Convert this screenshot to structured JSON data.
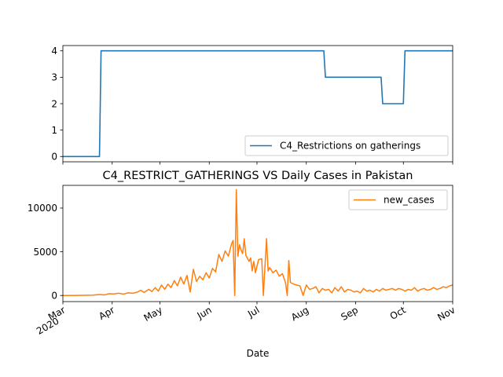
{
  "chart_data": [
    {
      "type": "line",
      "title": "",
      "xlabel": "",
      "ylabel": "",
      "ylim": [
        -0.2,
        4.2
      ],
      "yticks": [
        0,
        1,
        2,
        3,
        4
      ],
      "grid": false,
      "legend_position": "lower-right",
      "series": [
        {
          "name": "C4_Restrictions on gatherings",
          "color": "#1f77b4",
          "step": true,
          "points": [
            [
              "2020-03-01",
              0
            ],
            [
              "2020-03-24",
              0
            ],
            [
              "2020-03-25",
              4
            ],
            [
              "2020-08-12",
              4
            ],
            [
              "2020-08-13",
              3
            ],
            [
              "2020-09-17",
              3
            ],
            [
              "2020-09-18",
              2
            ],
            [
              "2020-10-01",
              2
            ],
            [
              "2020-10-02",
              4
            ],
            [
              "2020-11-01",
              4
            ]
          ]
        }
      ]
    },
    {
      "type": "line",
      "title": "C4_RESTRICT_GATHERINGS VS Daily Cases in Pakistan",
      "xlabel": "Date",
      "ylabel": "",
      "ylim": [
        -700,
        12600
      ],
      "yticks": [
        0,
        5000,
        10000
      ],
      "xlim": [
        "2020-03-01",
        "2020-11-01"
      ],
      "xticks": [
        {
          "date": "2020-03-01",
          "label": "Mar",
          "sublabel": "2020"
        },
        {
          "date": "2020-04-01",
          "label": "Apr"
        },
        {
          "date": "2020-05-01",
          "label": "May"
        },
        {
          "date": "2020-06-01",
          "label": "Jun"
        },
        {
          "date": "2020-07-01",
          "label": "Jul"
        },
        {
          "date": "2020-08-01",
          "label": "Aug"
        },
        {
          "date": "2020-09-01",
          "label": "Sep"
        },
        {
          "date": "2020-10-01",
          "label": "Oct"
        },
        {
          "date": "2020-11-01",
          "label": "Nov"
        }
      ],
      "grid": false,
      "legend_position": "upper-right",
      "series": [
        {
          "name": "new_cases",
          "color": "#ff7f0e",
          "points": [
            [
              "2020-03-01",
              0
            ],
            [
              "2020-03-10",
              5
            ],
            [
              "2020-03-20",
              40
            ],
            [
              "2020-03-24",
              110
            ],
            [
              "2020-03-27",
              60
            ],
            [
              "2020-03-30",
              200
            ],
            [
              "2020-04-02",
              180
            ],
            [
              "2020-04-05",
              260
            ],
            [
              "2020-04-08",
              150
            ],
            [
              "2020-04-11",
              300
            ],
            [
              "2020-04-14",
              250
            ],
            [
              "2020-04-17",
              400
            ],
            [
              "2020-04-19",
              600
            ],
            [
              "2020-04-21",
              350
            ],
            [
              "2020-04-24",
              700
            ],
            [
              "2020-04-26",
              450
            ],
            [
              "2020-04-28",
              900
            ],
            [
              "2020-04-30",
              500
            ],
            [
              "2020-05-02",
              1200
            ],
            [
              "2020-05-04",
              700
            ],
            [
              "2020-05-06",
              1300
            ],
            [
              "2020-05-08",
              900
            ],
            [
              "2020-05-10",
              1700
            ],
            [
              "2020-05-12",
              1100
            ],
            [
              "2020-05-14",
              2100
            ],
            [
              "2020-05-16",
              1300
            ],
            [
              "2020-05-18",
              2300
            ],
            [
              "2020-05-20",
              400
            ],
            [
              "2020-05-22",
              3000
            ],
            [
              "2020-05-24",
              1600
            ],
            [
              "2020-05-26",
              2200
            ],
            [
              "2020-05-28",
              1800
            ],
            [
              "2020-05-30",
              2600
            ],
            [
              "2020-06-01",
              2000
            ],
            [
              "2020-06-03",
              3100
            ],
            [
              "2020-06-05",
              2700
            ],
            [
              "2020-06-07",
              4700
            ],
            [
              "2020-06-09",
              3900
            ],
            [
              "2020-06-11",
              5100
            ],
            [
              "2020-06-13",
              4500
            ],
            [
              "2020-06-15",
              5900
            ],
            [
              "2020-06-16",
              6300
            ],
            [
              "2020-06-17",
              0
            ],
            [
              "2020-06-18",
              12100
            ],
            [
              "2020-06-19",
              4500
            ],
            [
              "2020-06-20",
              5800
            ],
            [
              "2020-06-21",
              5200
            ],
            [
              "2020-06-22",
              4800
            ],
            [
              "2020-06-23",
              6500
            ],
            [
              "2020-06-24",
              4600
            ],
            [
              "2020-06-26",
              3900
            ],
            [
              "2020-06-27",
              4300
            ],
            [
              "2020-06-28",
              2800
            ],
            [
              "2020-06-29",
              3900
            ],
            [
              "2020-06-30",
              2600
            ],
            [
              "2020-07-02",
              4100
            ],
            [
              "2020-07-04",
              4200
            ],
            [
              "2020-07-05",
              0
            ],
            [
              "2020-07-07",
              6500
            ],
            [
              "2020-07-08",
              2800
            ],
            [
              "2020-07-09",
              3200
            ],
            [
              "2020-07-11",
              2600
            ],
            [
              "2020-07-13",
              2900
            ],
            [
              "2020-07-15",
              2200
            ],
            [
              "2020-07-17",
              2500
            ],
            [
              "2020-07-19",
              1400
            ],
            [
              "2020-07-20",
              0
            ],
            [
              "2020-07-21",
              4000
            ],
            [
              "2020-07-22",
              1500
            ],
            [
              "2020-07-24",
              1300
            ],
            [
              "2020-07-26",
              1200
            ],
            [
              "2020-07-28",
              1100
            ],
            [
              "2020-07-30",
              0
            ],
            [
              "2020-08-01",
              1200
            ],
            [
              "2020-08-03",
              700
            ],
            [
              "2020-08-05",
              800
            ],
            [
              "2020-08-07",
              1000
            ],
            [
              "2020-08-09",
              300
            ],
            [
              "2020-08-11",
              800
            ],
            [
              "2020-08-13",
              600
            ],
            [
              "2020-08-15",
              700
            ],
            [
              "2020-08-17",
              300
            ],
            [
              "2020-08-19",
              900
            ],
            [
              "2020-08-21",
              500
            ],
            [
              "2020-08-23",
              1000
            ],
            [
              "2020-08-25",
              400
            ],
            [
              "2020-08-27",
              700
            ],
            [
              "2020-08-29",
              600
            ],
            [
              "2020-08-31",
              400
            ],
            [
              "2020-09-02",
              500
            ],
            [
              "2020-09-04",
              300
            ],
            [
              "2020-09-06",
              800
            ],
            [
              "2020-09-08",
              500
            ],
            [
              "2020-09-10",
              600
            ],
            [
              "2020-09-12",
              400
            ],
            [
              "2020-09-14",
              700
            ],
            [
              "2020-09-16",
              500
            ],
            [
              "2020-09-18",
              800
            ],
            [
              "2020-09-20",
              600
            ],
            [
              "2020-09-22",
              700
            ],
            [
              "2020-09-24",
              800
            ],
            [
              "2020-09-26",
              600
            ],
            [
              "2020-09-28",
              800
            ],
            [
              "2020-09-30",
              700
            ],
            [
              "2020-10-02",
              500
            ],
            [
              "2020-10-04",
              700
            ],
            [
              "2020-10-06",
              600
            ],
            [
              "2020-10-08",
              900
            ],
            [
              "2020-10-10",
              500
            ],
            [
              "2020-10-12",
              700
            ],
            [
              "2020-10-14",
              800
            ],
            [
              "2020-10-16",
              600
            ],
            [
              "2020-10-18",
              700
            ],
            [
              "2020-10-20",
              900
            ],
            [
              "2020-10-22",
              700
            ],
            [
              "2020-10-24",
              800
            ],
            [
              "2020-10-26",
              1000
            ],
            [
              "2020-10-28",
              900
            ],
            [
              "2020-10-30",
              1100
            ],
            [
              "2020-11-01",
              1200
            ]
          ]
        }
      ]
    }
  ]
}
